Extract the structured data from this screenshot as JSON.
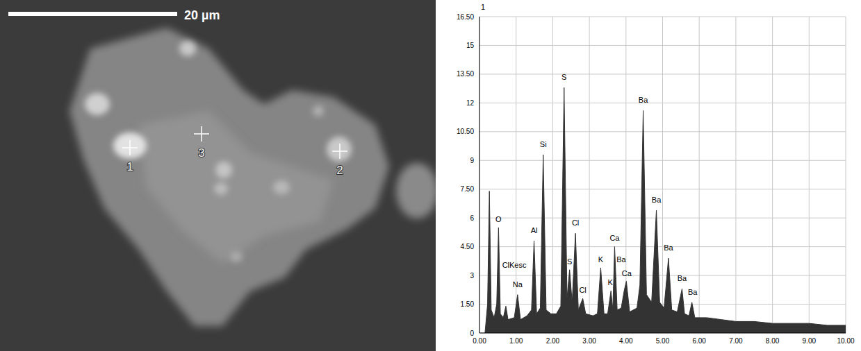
{
  "micrograph": {
    "scale_bar": "20 µm",
    "points": [
      "1",
      "2",
      "3"
    ]
  },
  "chart_data": {
    "type": "area",
    "title": "1",
    "color": "#333333",
    "x": [
      0.15,
      0.22,
      0.27,
      0.32,
      0.4,
      0.47,
      0.52,
      0.57,
      0.65,
      0.72,
      0.78,
      0.95,
      1.04,
      1.12,
      1.3,
      1.42,
      1.49,
      1.56,
      1.66,
      1.74,
      1.82,
      1.95,
      2.1,
      2.22,
      2.31,
      2.39,
      2.46,
      2.53,
      2.62,
      2.7,
      2.82,
      2.9,
      3.1,
      3.22,
      3.31,
      3.4,
      3.5,
      3.59,
      3.64,
      3.69,
      3.76,
      3.87,
      3.95,
      4.01,
      4.1,
      4.3,
      4.38,
      4.47,
      4.56,
      4.7,
      4.83,
      4.92,
      5.04,
      5.16,
      5.25,
      5.4,
      5.53,
      5.6,
      5.72,
      5.8,
      5.88,
      6.2,
      6.6,
      7.0,
      7.5,
      8.0,
      8.5,
      9.0,
      9.5,
      10.0
    ],
    "values": [
      0,
      1.5,
      7.4,
      1.2,
      0.8,
      1.5,
      5.5,
      1.0,
      0.8,
      1.4,
      0.7,
      0.8,
      2.0,
      0.7,
      0.9,
      1.2,
      4.8,
      1.0,
      1.3,
      9.3,
      1.2,
      1.0,
      1.0,
      1.4,
      12.8,
      1.8,
      3.3,
      1.6,
      5.2,
      1.2,
      1.8,
      1.0,
      0.9,
      1.0,
      3.4,
      1.0,
      1.0,
      2.2,
      1.2,
      4.5,
      1.2,
      1.3,
      2.2,
      2.7,
      1.1,
      1.3,
      2.5,
      11.6,
      2.0,
      1.6,
      6.4,
      1.6,
      1.3,
      3.9,
      1.2,
      1.1,
      2.3,
      1.0,
      0.9,
      1.6,
      0.8,
      0.8,
      0.7,
      0.6,
      0.6,
      0.5,
      0.5,
      0.5,
      0.4,
      0.4
    ],
    "xlim": [
      0,
      10
    ],
    "xticks": [
      {
        "value": 0,
        "label": "0.00"
      },
      {
        "value": 1,
        "label": "1.00"
      },
      {
        "value": 2,
        "label": "2.00"
      },
      {
        "value": 3,
        "label": "3.00"
      },
      {
        "value": 4,
        "label": "4.00"
      },
      {
        "value": 5,
        "label": "5.00"
      },
      {
        "value": 6,
        "label": "6.00"
      },
      {
        "value": 7,
        "label": "7.00"
      },
      {
        "value": 8,
        "label": "8.00"
      },
      {
        "value": 9,
        "label": "9.00"
      },
      {
        "value": 10,
        "label": "10.00"
      }
    ],
    "ylim": [
      0,
      16.5
    ],
    "yticks": [
      0,
      {
        "value": 1.5,
        "label": "1.50"
      },
      3,
      {
        "value": 4.5,
        "label": "4.50"
      },
      6,
      {
        "value": 7.5,
        "label": "7.50"
      },
      9,
      {
        "value": 10.5,
        "label": "10.50"
      },
      12,
      {
        "value": 13.5,
        "label": "13.50"
      },
      15,
      {
        "value": 16.5,
        "label": "16.50"
      }
    ],
    "grid": true,
    "annotations": [
      {
        "text": "O",
        "x": 0.52,
        "y": 5.8
      },
      {
        "text": "ClKesc",
        "x": 0.95,
        "y": 3.4
      },
      {
        "text": "Na",
        "x": 1.04,
        "y": 2.4
      },
      {
        "text": "Al",
        "x": 1.49,
        "y": 5.2
      },
      {
        "text": "Si",
        "x": 1.74,
        "y": 9.7
      },
      {
        "text": "S",
        "x": 2.31,
        "y": 13.2
      },
      {
        "text": "S",
        "x": 2.46,
        "y": 3.6
      },
      {
        "text": "Cl",
        "x": 2.62,
        "y": 5.6
      },
      {
        "text": "Cl",
        "x": 2.82,
        "y": 2.1
      },
      {
        "text": "K",
        "x": 3.31,
        "y": 3.7
      },
      {
        "text": "K",
        "x": 3.57,
        "y": 2.5
      },
      {
        "text": "Ca",
        "x": 3.69,
        "y": 4.8
      },
      {
        "text": "Ba",
        "x": 3.87,
        "y": 3.7
      },
      {
        "text": "Ca",
        "x": 4.02,
        "y": 2.95
      },
      {
        "text": "Ba",
        "x": 4.47,
        "y": 12.0
      },
      {
        "text": "Ba",
        "x": 4.83,
        "y": 6.8
      },
      {
        "text": "Ba",
        "x": 5.16,
        "y": 4.3
      },
      {
        "text": "Ba",
        "x": 5.53,
        "y": 2.7
      },
      {
        "text": "Ba",
        "x": 5.82,
        "y": 2.0
      }
    ]
  }
}
